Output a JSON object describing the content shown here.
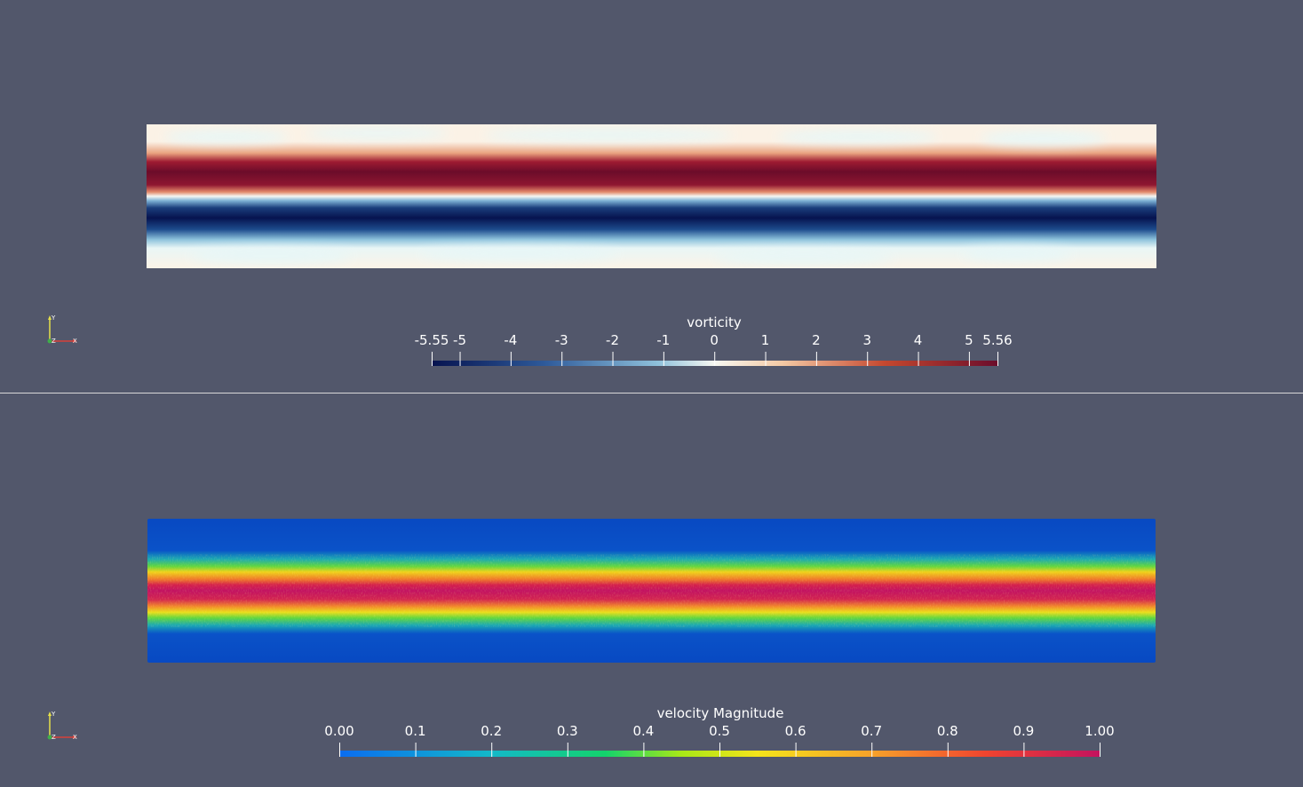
{
  "views": [
    {
      "id": "top",
      "field": "vorticity",
      "colorbar": {
        "title": "vorticity",
        "ticks": [
          "-5.55",
          "-5",
          "-4",
          "-3",
          "-2",
          "-1",
          "0",
          "1",
          "2",
          "3",
          "4",
          "5",
          "5.56"
        ],
        "tick_values": [
          -5.55,
          -5,
          -4,
          -3,
          -2,
          -1,
          0,
          1,
          2,
          3,
          4,
          5,
          5.56
        ],
        "range": [
          -5.55,
          5.56
        ],
        "colormap": "diverging blue-white-red",
        "colors": [
          "#06134f",
          "#2e5a9a",
          "#8fc1db",
          "#f7f8f2",
          "#f3c9a4",
          "#c5482f",
          "#6b0d2b"
        ]
      },
      "axes": {
        "y_label": "Y",
        "z_label": "Z",
        "x_label": "X"
      }
    },
    {
      "id": "bottom",
      "field": "velocity Magnitude",
      "colorbar": {
        "title": "velocity Magnitude",
        "ticks": [
          "0.00",
          "0.1",
          "0.2",
          "0.3",
          "0.4",
          "0.5",
          "0.6",
          "0.7",
          "0.8",
          "0.9",
          "1.00"
        ],
        "tick_values": [
          0.0,
          0.1,
          0.2,
          0.3,
          0.4,
          0.5,
          0.6,
          0.7,
          0.8,
          0.9,
          1.0
        ],
        "range": [
          0.0,
          1.0
        ],
        "colormap": "turbo-like rainbow",
        "colors": [
          "#0a6cf0",
          "#13b9c8",
          "#13d36c",
          "#a8e817",
          "#f5e41a",
          "#f7a22a",
          "#f0442f",
          "#c4125e"
        ]
      },
      "axes": {
        "y_label": "Y",
        "z_label": "Z",
        "x_label": "X"
      }
    }
  ]
}
